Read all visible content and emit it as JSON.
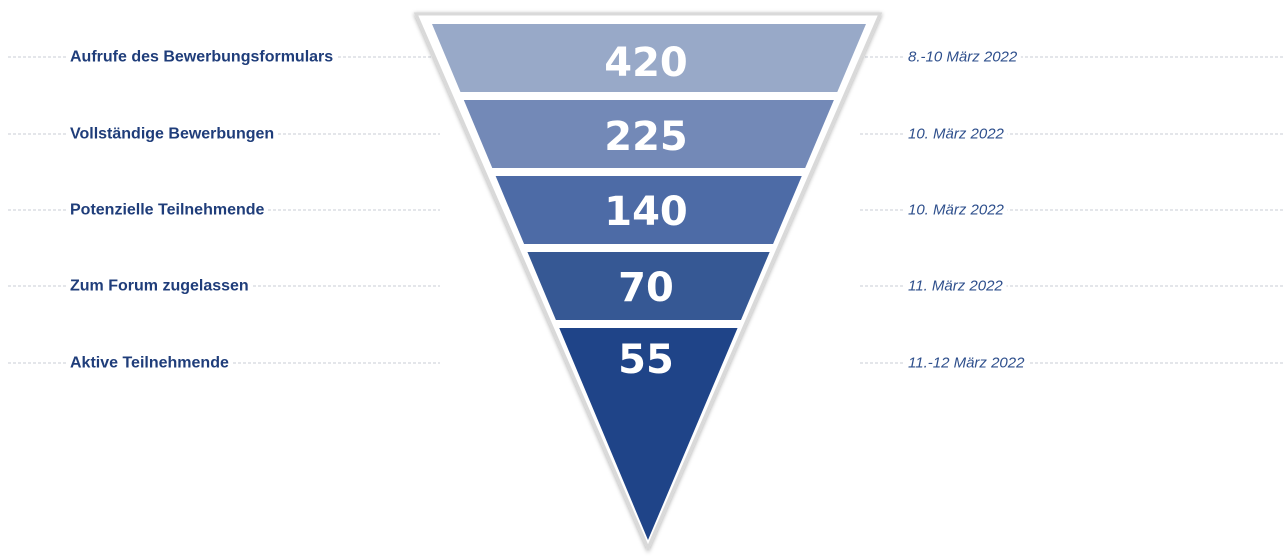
{
  "chart_data": {
    "type": "funnel",
    "title": "",
    "stages": [
      {
        "label": "Aufrufe des Bewerbungsformulars",
        "value": 420,
        "date": "8.-10 März 2022",
        "color": "#98A9C8"
      },
      {
        "label": "Vollständige Bewerbungen",
        "value": 225,
        "date": "10. März 2022",
        "color": "#7389B7"
      },
      {
        "label": "Potenzielle Teilnehmende",
        "value": 140,
        "date": "10. März 2022",
        "color": "#4D6BA6"
      },
      {
        "label": "Zum Forum zugelassen",
        "value": 70,
        "date": "11. März 2022",
        "color": "#365894"
      },
      {
        "label": "Aktive Teilnehmende",
        "value": 55,
        "date": "11.-12 März 2022",
        "color": "#1F4488"
      }
    ],
    "colors": {
      "label_text": "#1F3D7A",
      "date_text": "#2E4F8C",
      "value_text": "#FFFFFF",
      "guide_line": "#C8CCD4",
      "funnel_outline": "#D9D9D9"
    }
  }
}
